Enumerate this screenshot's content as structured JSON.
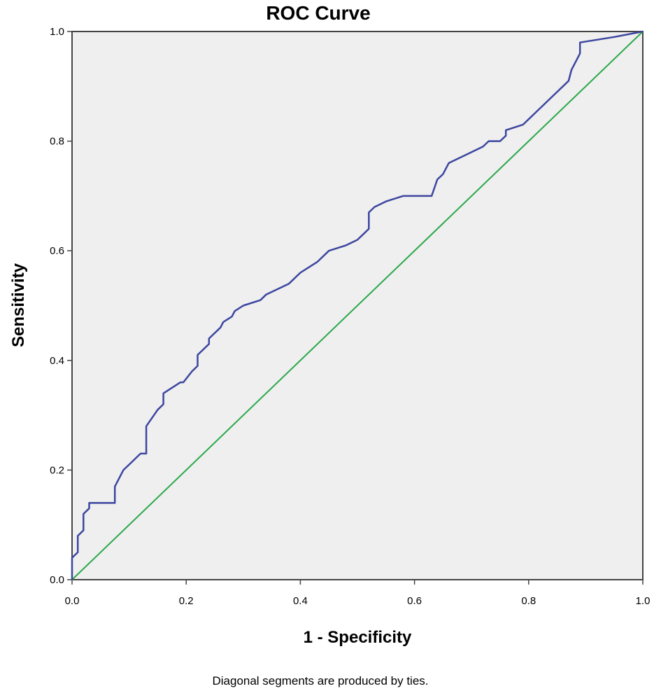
{
  "chart_data": {
    "type": "line",
    "title": "ROC Curve",
    "xlabel": "1 - Specificity",
    "ylabel": "Sensitivity",
    "xlim": [
      0.0,
      1.0
    ],
    "ylim": [
      0.0,
      1.0
    ],
    "x_ticks": [
      "0.0",
      "0.2",
      "0.4",
      "0.6",
      "0.8",
      "1.0"
    ],
    "y_ticks": [
      "0.0",
      "0.2",
      "0.4",
      "0.6",
      "0.8",
      "1.0"
    ],
    "grid": false,
    "footnote": "Diagonal segments are produced by ties.",
    "colors": {
      "plot_background": "#efefef",
      "roc_line": "#3c46a0",
      "reference_line": "#2aa84a"
    },
    "series": [
      {
        "x": [
          0.0,
          0.0,
          0.01,
          0.01,
          0.02,
          0.02,
          0.03,
          0.03,
          0.04,
          0.075,
          0.075,
          0.09,
          0.1,
          0.12,
          0.13,
          0.13,
          0.15,
          0.16,
          0.16,
          0.19,
          0.195,
          0.21,
          0.22,
          0.22,
          0.24,
          0.24,
          0.26,
          0.265,
          0.28,
          0.285,
          0.3,
          0.33,
          0.34,
          0.36,
          0.38,
          0.4,
          0.43,
          0.45,
          0.48,
          0.5,
          0.51,
          0.52,
          0.52,
          0.53,
          0.55,
          0.58,
          0.63,
          0.64,
          0.65,
          0.66,
          0.7,
          0.72,
          0.73,
          0.75,
          0.76,
          0.76,
          0.79,
          0.84,
          0.86,
          0.87,
          0.875,
          0.89,
          0.89,
          0.95,
          1.0
        ],
        "y": [
          0.0,
          0.04,
          0.05,
          0.08,
          0.09,
          0.12,
          0.13,
          0.14,
          0.14,
          0.14,
          0.17,
          0.2,
          0.21,
          0.23,
          0.23,
          0.28,
          0.31,
          0.32,
          0.34,
          0.36,
          0.36,
          0.38,
          0.39,
          0.41,
          0.43,
          0.44,
          0.46,
          0.47,
          0.48,
          0.49,
          0.5,
          0.51,
          0.52,
          0.53,
          0.54,
          0.56,
          0.58,
          0.6,
          0.61,
          0.62,
          0.63,
          0.64,
          0.67,
          0.68,
          0.69,
          0.7,
          0.7,
          0.73,
          0.74,
          0.76,
          0.78,
          0.79,
          0.8,
          0.8,
          0.81,
          0.82,
          0.83,
          0.88,
          0.9,
          0.91,
          0.93,
          0.96,
          0.98,
          0.99,
          1.0
        ]
      },
      {
        "x": [
          0.0,
          1.0
        ],
        "y": [
          0.0,
          1.0
        ]
      }
    ]
  }
}
